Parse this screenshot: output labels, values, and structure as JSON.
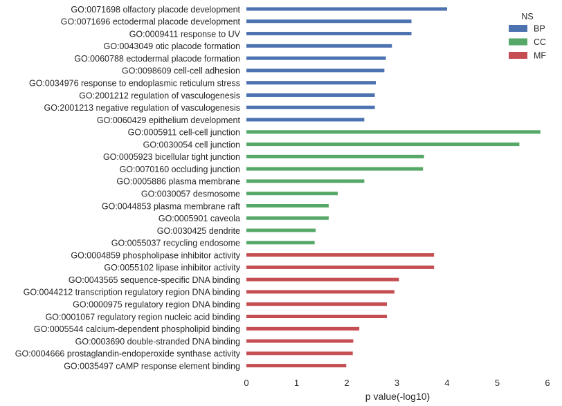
{
  "chart_data": {
    "type": "bar",
    "orientation": "horizontal",
    "xlabel": "p value(-log10)",
    "xlim": [
      0,
      6
    ],
    "xticks": [
      "0",
      "1",
      "2",
      "3",
      "4",
      "5",
      "6"
    ],
    "grid": false,
    "legend": {
      "title": "NS",
      "placement": "top-right",
      "entries": [
        {
          "label": "BP",
          "color": "#4c72b0"
        },
        {
          "label": "CC",
          "color": "#55a868"
        },
        {
          "label": "MF",
          "color": "#c44e52"
        }
      ]
    },
    "categories": [
      "GO:0071698 olfactory placode development",
      "GO:0071696 ectodermal placode development",
      "GO:0009411 response to UV",
      "GO:0043049 otic placode formation",
      "GO:0060788 ectodermal placode formation",
      "GO:0098609 cell-cell adhesion",
      "GO:0034976 response to endoplasmic reticulum stress",
      "GO:2001212 regulation of vasculogenesis",
      "GO:2001213 negative regulation of vasculogenesis",
      "GO:0060429 epithelium development",
      "GO:0005911 cell-cell junction",
      "GO:0030054 cell junction",
      "GO:0005923 bicellular tight junction",
      "GO:0070160 occluding junction",
      "GO:0005886 plasma membrane",
      "GO:0030057 desmosome",
      "GO:0044853 plasma membrane raft",
      "GO:0005901 caveola",
      "GO:0030425 dendrite",
      "GO:0055037 recycling endosome",
      "GO:0004859 phospholipase inhibitor activity",
      "GO:0055102 lipase inhibitor activity",
      "GO:0043565 sequence-specific DNA binding",
      "GO:0044212 transcription regulatory region DNA binding",
      "GO:0000975 regulatory region DNA binding",
      "GO:0001067 regulatory region nucleic acid binding",
      "GO:0005544 calcium-dependent phospholipid binding",
      "GO:0003690 double-stranded DNA binding",
      "GO:0004666 prostaglandin-endoperoxide synthase activity",
      "GO:0035497 cAMP response element binding"
    ],
    "series": [
      {
        "name": "BP",
        "color": "#4c72b0",
        "values": [
          4.0,
          3.29,
          3.29,
          2.9,
          2.78,
          2.75,
          2.58,
          2.56,
          2.56,
          2.35,
          null,
          null,
          null,
          null,
          null,
          null,
          null,
          null,
          null,
          null,
          null,
          null,
          null,
          null,
          null,
          null,
          null,
          null,
          null,
          null
        ]
      },
      {
        "name": "CC",
        "color": "#55a868",
        "values": [
          null,
          null,
          null,
          null,
          null,
          null,
          null,
          null,
          null,
          null,
          5.86,
          5.44,
          3.54,
          3.52,
          2.35,
          1.82,
          1.64,
          1.64,
          1.38,
          1.36,
          null,
          null,
          null,
          null,
          null,
          null,
          null,
          null,
          null,
          null
        ]
      },
      {
        "name": "MF",
        "color": "#c44e52",
        "values": [
          null,
          null,
          null,
          null,
          null,
          null,
          null,
          null,
          null,
          null,
          null,
          null,
          null,
          null,
          null,
          null,
          null,
          null,
          null,
          null,
          3.74,
          3.74,
          3.04,
          2.95,
          2.8,
          2.8,
          2.25,
          2.13,
          2.12,
          1.99
        ]
      }
    ]
  }
}
